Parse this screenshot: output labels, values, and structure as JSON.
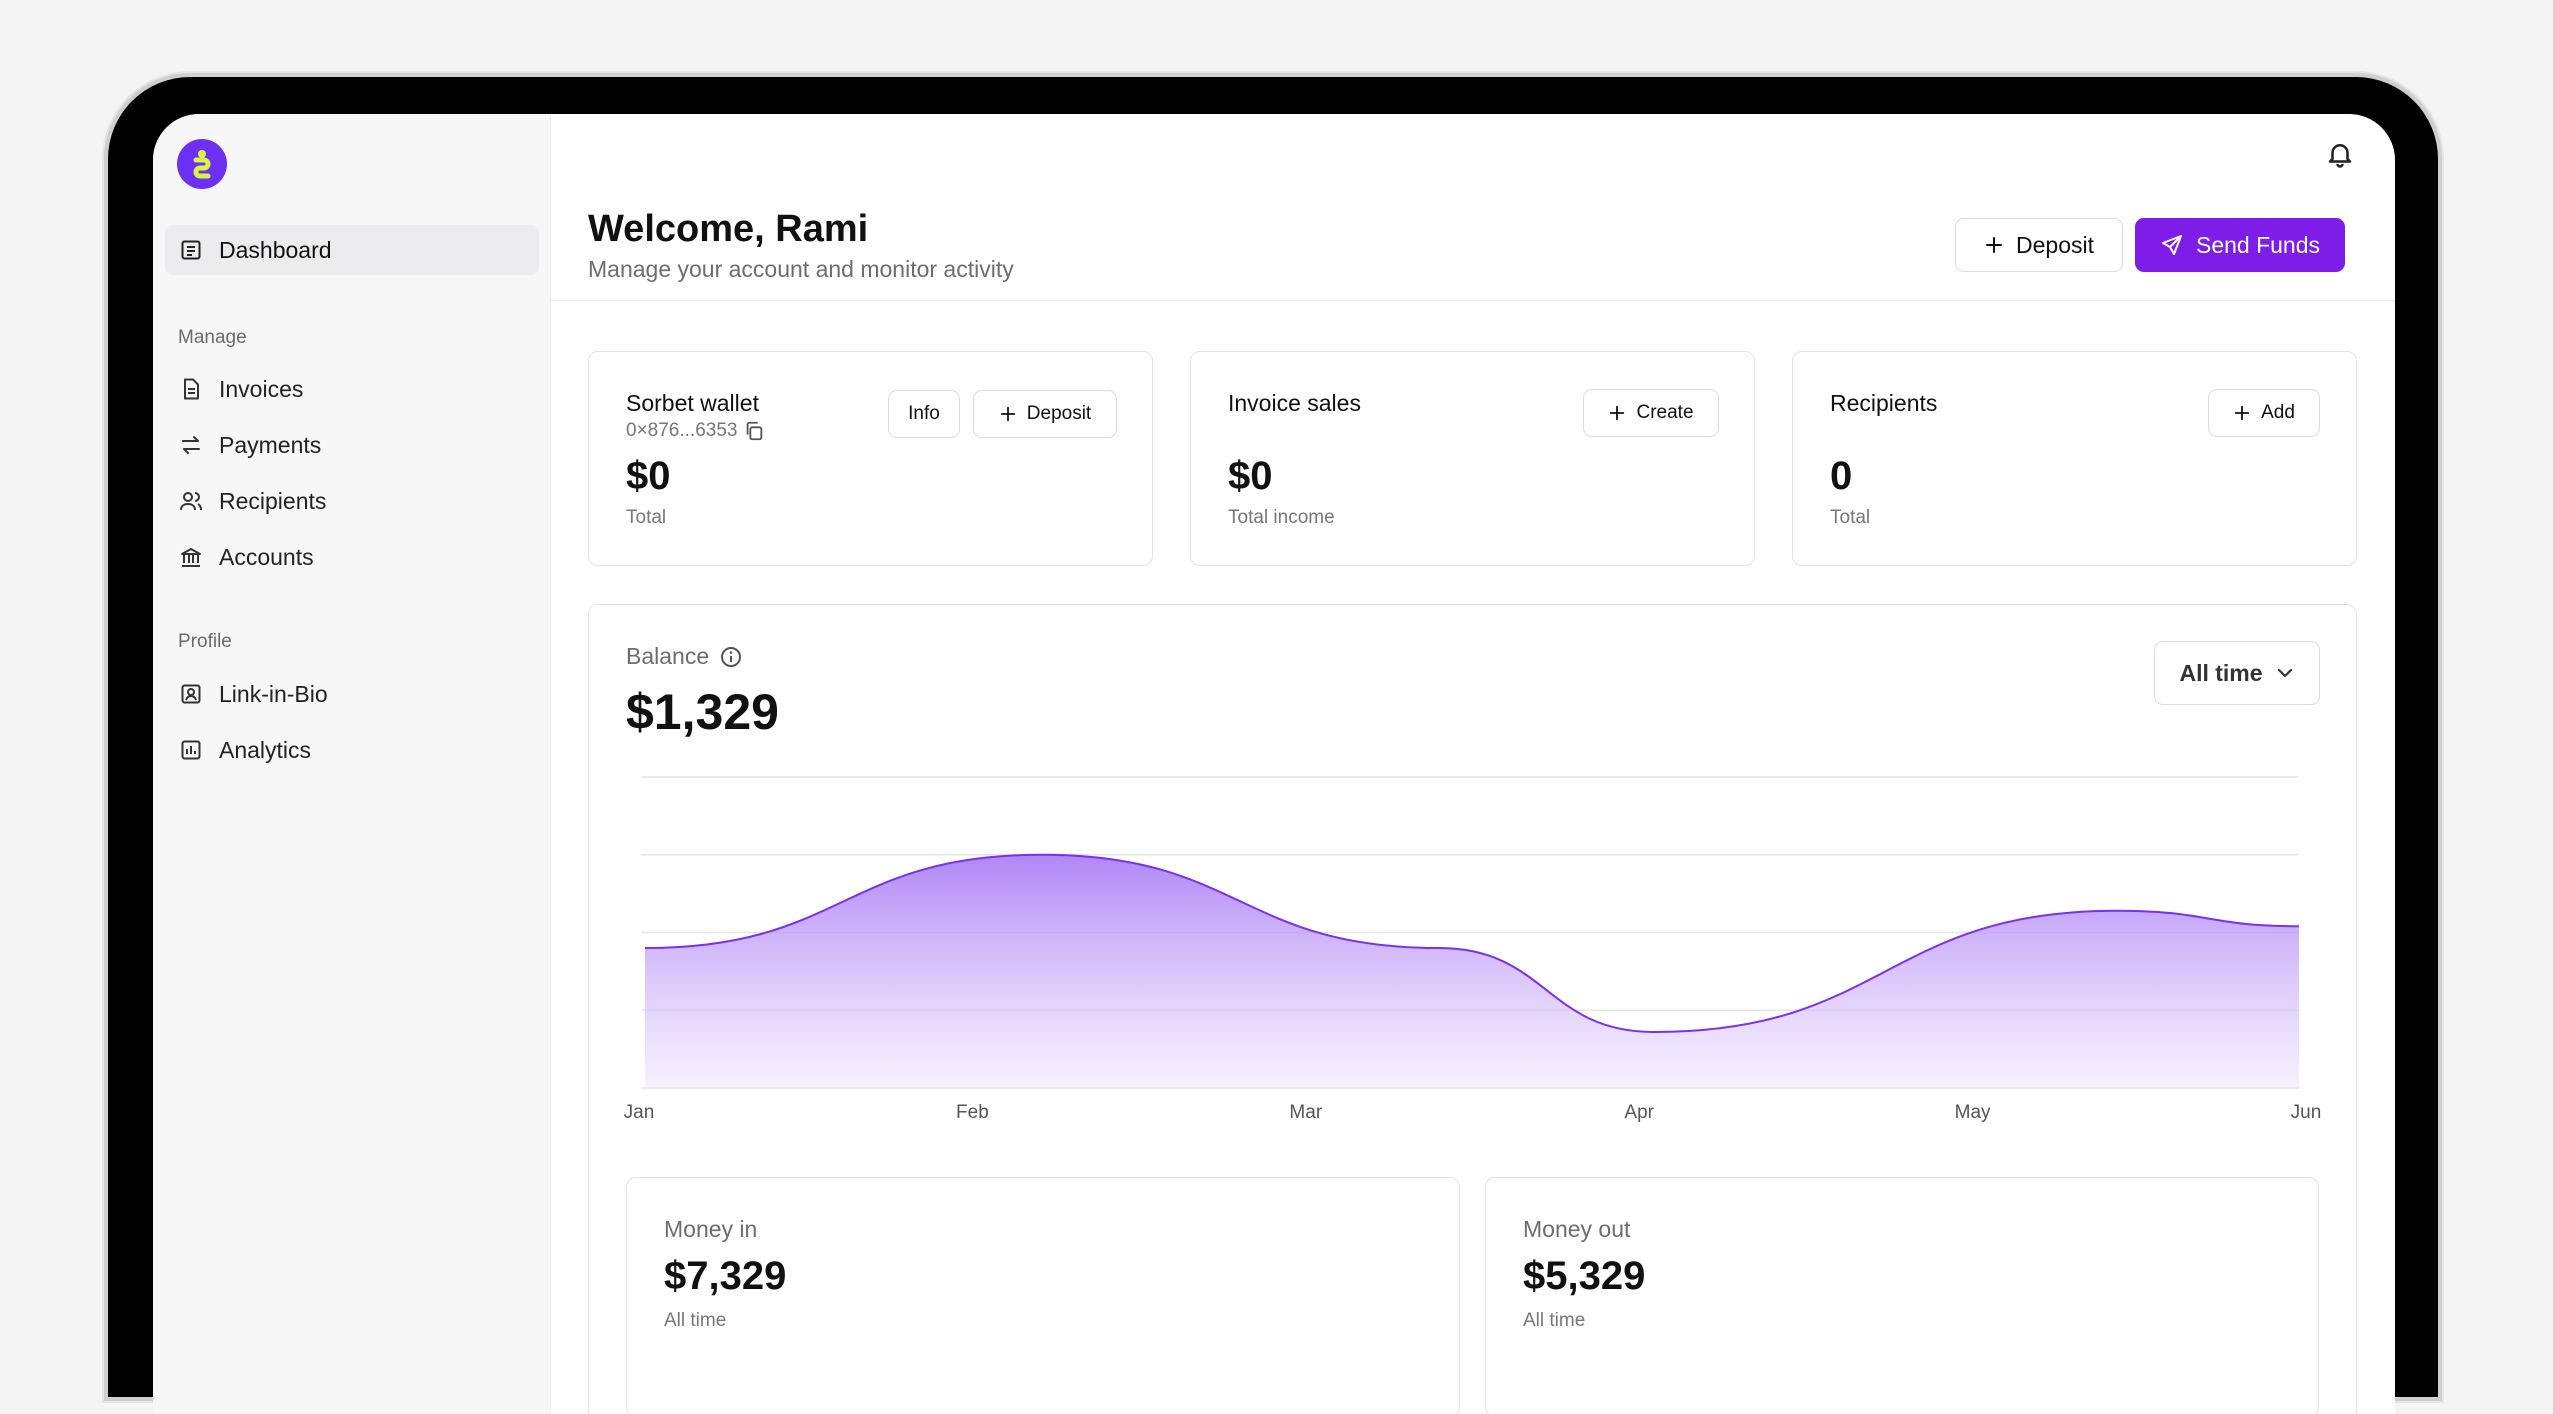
{
  "sidebar": {
    "logo_letter": "S",
    "items": [
      {
        "label": "Dashboard",
        "icon": "dashboard-icon",
        "active": true
      },
      {
        "label": "Invoices",
        "icon": "invoice-icon"
      },
      {
        "label": "Payments",
        "icon": "transfer-icon"
      },
      {
        "label": "Recipients",
        "icon": "users-icon"
      },
      {
        "label": "Accounts",
        "icon": "bank-icon"
      },
      {
        "label": "Link-in-Bio",
        "icon": "profile-card-icon"
      },
      {
        "label": "Analytics",
        "icon": "analytics-icon"
      }
    ],
    "sections": {
      "manage": "Manage",
      "profile": "Profile"
    }
  },
  "header": {
    "title": "Welcome, Rami",
    "subtitle": "Manage your account and monitor activity",
    "deposit_label": "Deposit",
    "send_label": "Send Funds"
  },
  "cards": {
    "wallet": {
      "title": "Sorbet wallet",
      "address": "0×876...6353",
      "info_label": "Info",
      "deposit_label": "Deposit",
      "value": "$0",
      "caption": "Total"
    },
    "invoice": {
      "title": "Invoice sales",
      "create_label": "Create",
      "value": "$0",
      "caption": "Total income"
    },
    "recipients": {
      "title": "Recipients",
      "add_label": "Add",
      "value": "0",
      "caption": "Total"
    }
  },
  "balance": {
    "label": "Balance",
    "value": "$1,329",
    "range_label": "All time"
  },
  "chart_data": {
    "type": "area",
    "x": [
      "Jan",
      "Feb",
      "Mar",
      "Apr",
      "May",
      "Jun"
    ],
    "points": [
      [
        0,
        45
      ],
      [
        1.2,
        75
      ],
      [
        2.4,
        45
      ],
      [
        3.05,
        18
      ],
      [
        4.45,
        57
      ],
      [
        5,
        52
      ]
    ],
    "ylim": [
      0,
      100
    ],
    "gridlines": 5,
    "color": "#7b2ff0"
  },
  "money": {
    "in": {
      "label": "Money in",
      "value": "$7,329",
      "caption": "All time"
    },
    "out": {
      "label": "Money out",
      "value": "$5,329",
      "caption": "All time"
    }
  },
  "colors": {
    "accent": "#7f1de8",
    "logo": "#6d2ff1",
    "logo_mark": "#d7f542"
  }
}
